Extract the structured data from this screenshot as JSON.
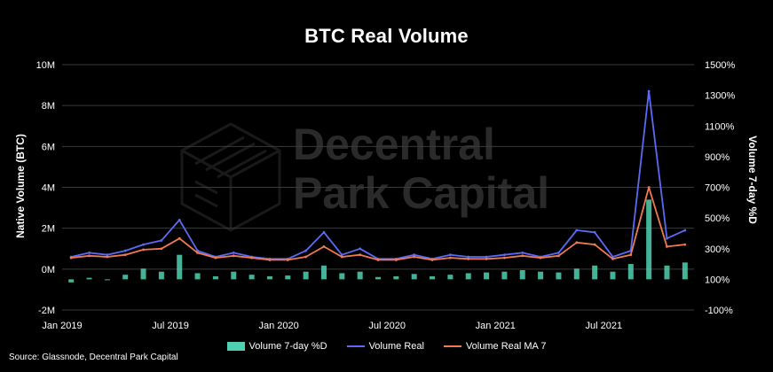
{
  "title": "BTC Real Volume",
  "source": "Source: Glassnode, Decentral Park Capital",
  "watermark": {
    "line1": "Decentral",
    "line2": "Park Capital"
  },
  "colors": {
    "background": "#000000",
    "volume_change": "#4fd1b0",
    "volume_real": "#5a6bf5",
    "volume_real_ma7": "#f07a52",
    "grid": "#3a3a3a"
  },
  "chart_data": {
    "type": "line",
    "title": "BTC Real Volume",
    "ylabel": "Native Volume (BTC)",
    "y2label": "Volume 7-day %D",
    "ylim": [
      -2000000,
      10000000
    ],
    "y2lim": [
      -100,
      1500
    ],
    "yticks": [
      "10M",
      "8M",
      "6M",
      "4M",
      "2M",
      "0M",
      "-2M"
    ],
    "y2ticks": [
      "1500%",
      "1300%",
      "1100%",
      "900%",
      "700%",
      "500%",
      "300%",
      "100%",
      "-100%"
    ],
    "xticks": [
      "Jan 2019",
      "Jul 2019",
      "Jan 2020",
      "Jul 2020",
      "Jan 2021",
      "Jul 2021"
    ],
    "grid": true,
    "legend_position": "bottom",
    "series": [
      {
        "name": "Volume 7-day %D",
        "type": "bar",
        "axis": "right",
        "x": [
          "2019-01",
          "2019-02",
          "2019-03",
          "2019-04",
          "2019-05",
          "2019-06",
          "2019-07",
          "2019-08",
          "2019-09",
          "2019-10",
          "2019-11",
          "2019-12",
          "2020-01",
          "2020-02",
          "2020-03",
          "2020-04",
          "2020-05",
          "2020-06",
          "2020-07",
          "2020-08",
          "2020-09",
          "2020-10",
          "2020-11",
          "2020-12",
          "2021-01",
          "2021-02",
          "2021-03",
          "2021-04",
          "2021-05",
          "2021-06",
          "2021-07",
          "2021-08",
          "2021-09",
          "2021-10",
          "2021-11"
        ],
        "values": [
          80,
          110,
          95,
          130,
          170,
          150,
          260,
          140,
          120,
          150,
          130,
          120,
          125,
          150,
          190,
          140,
          150,
          115,
          120,
          135,
          120,
          130,
          140,
          145,
          150,
          160,
          150,
          145,
          170,
          190,
          150,
          200,
          620,
          190,
          210
        ]
      },
      {
        "name": "Volume Real",
        "type": "line",
        "axis": "left",
        "x": [
          "2019-01",
          "2019-02",
          "2019-03",
          "2019-04",
          "2019-05",
          "2019-06",
          "2019-07",
          "2019-08",
          "2019-09",
          "2019-10",
          "2019-11",
          "2019-12",
          "2020-01",
          "2020-02",
          "2020-03",
          "2020-04",
          "2020-05",
          "2020-06",
          "2020-07",
          "2020-08",
          "2020-09",
          "2020-10",
          "2020-11",
          "2020-12",
          "2021-01",
          "2021-02",
          "2021-03",
          "2021-04",
          "2021-05",
          "2021-06",
          "2021-07",
          "2021-08",
          "2021-09",
          "2021-10",
          "2021-11"
        ],
        "values": [
          600000,
          800000,
          700000,
          900000,
          1200000,
          1400000,
          2400000,
          900000,
          600000,
          800000,
          600000,
          500000,
          500000,
          900000,
          1800000,
          700000,
          1000000,
          500000,
          500000,
          700000,
          500000,
          700000,
          600000,
          600000,
          700000,
          800000,
          600000,
          800000,
          1900000,
          1800000,
          600000,
          900000,
          8700000,
          1500000,
          1900000
        ]
      },
      {
        "name": "Volume Real MA 7",
        "type": "line",
        "axis": "left",
        "x": [
          "2019-01",
          "2019-02",
          "2019-03",
          "2019-04",
          "2019-05",
          "2019-06",
          "2019-07",
          "2019-08",
          "2019-09",
          "2019-10",
          "2019-11",
          "2019-12",
          "2020-01",
          "2020-02",
          "2020-03",
          "2020-04",
          "2020-05",
          "2020-06",
          "2020-07",
          "2020-08",
          "2020-09",
          "2020-10",
          "2020-11",
          "2020-12",
          "2021-01",
          "2021-02",
          "2021-03",
          "2021-04",
          "2021-05",
          "2021-06",
          "2021-07",
          "2021-08",
          "2021-09",
          "2021-10",
          "2021-11"
        ],
        "values": [
          550000,
          650000,
          600000,
          700000,
          950000,
          1000000,
          1500000,
          800000,
          550000,
          650000,
          550000,
          450000,
          450000,
          600000,
          1100000,
          600000,
          700000,
          450000,
          450000,
          600000,
          450000,
          550000,
          500000,
          500000,
          550000,
          650000,
          550000,
          650000,
          1300000,
          1200000,
          500000,
          700000,
          4000000,
          1100000,
          1200000
        ]
      }
    ]
  }
}
